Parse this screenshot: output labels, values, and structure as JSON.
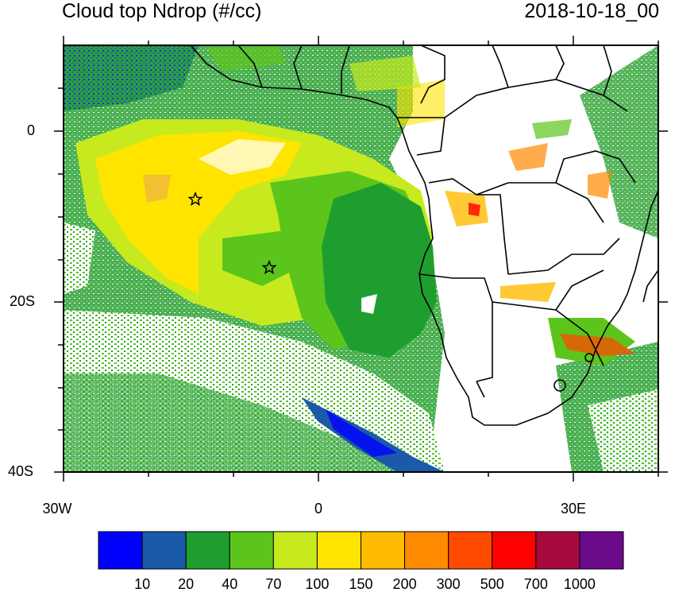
{
  "map": {
    "title": "Cloud top Ndrop (#/cc)",
    "datetime": "2018-10-18_00",
    "lat_labels": [
      "0",
      "20S",
      "40S"
    ],
    "lon_labels": [
      "30W",
      "0",
      "30E"
    ],
    "markers": [
      {
        "name": "star",
        "lon": -14.5,
        "lat": -8
      },
      {
        "name": "star",
        "lon": -5.5,
        "lat": -16
      }
    ]
  },
  "colorbar": {
    "labels": [
      "10",
      "20",
      "40",
      "70",
      "100",
      "150",
      "200",
      "300",
      "500",
      "700",
      "1000"
    ],
    "colors": [
      "#0000ff",
      "#1a5aa8",
      "#1e9e2e",
      "#5cc51c",
      "#c6ea1e",
      "#ffe400",
      "#ffbb00",
      "#ff8a00",
      "#ff4a00",
      "#ff0000",
      "#a80a40",
      "#6a0a8a"
    ]
  }
}
